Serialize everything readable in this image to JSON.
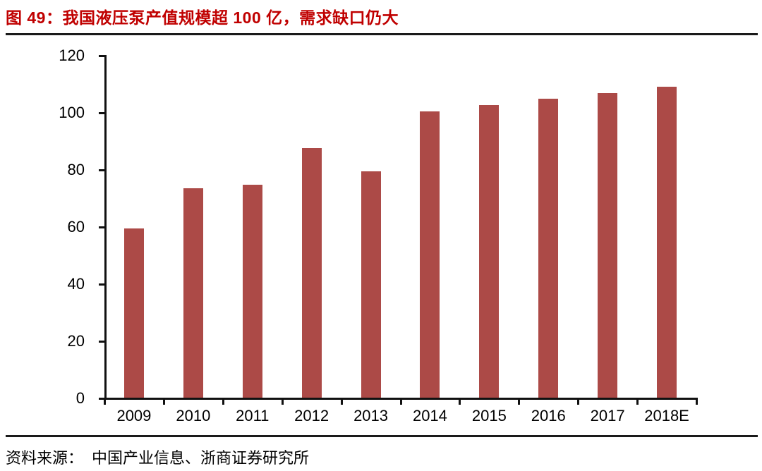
{
  "figure": {
    "title": "图 49：我国液压泵产值规模超 100 亿，需求缺口仍大",
    "source_label": "资料来源：",
    "source_text": "中国产业信息、浙商证券研究所"
  },
  "colors": {
    "title_red": "#C00000",
    "bar_fill": "#AC4A47",
    "axis_black": "#111111",
    "rule_black": "#1A1A1A"
  },
  "chart_data": {
    "type": "bar",
    "title": "图 49：我国液压泵产值规模超 100 亿，需求缺口仍大",
    "categories": [
      "2009",
      "2010",
      "2011",
      "2012",
      "2013",
      "2014",
      "2015",
      "2016",
      "2017",
      "2018E"
    ],
    "values": [
      59.4,
      73.6,
      74.9,
      87.7,
      79.6,
      100.4,
      102.7,
      104.9,
      106.9,
      109.1
    ],
    "xlabel": "",
    "ylabel": "",
    "ylim": [
      0,
      120
    ],
    "y_ticks": [
      0,
      20,
      40,
      60,
      80,
      100,
      120
    ],
    "y_tick_labels": [
      "0",
      "20",
      "40",
      "60",
      "80",
      "100",
      "120"
    ],
    "grid": false,
    "legend_position": "none",
    "bar_color": "#AC4A47"
  }
}
